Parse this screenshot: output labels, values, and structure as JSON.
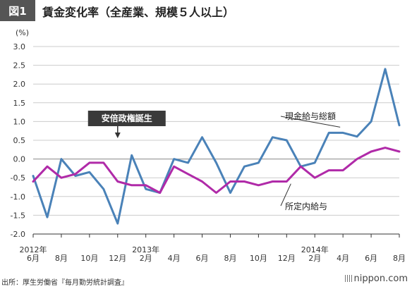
{
  "figure": {
    "badge": "図1",
    "title": "賃金変化率（全産業、規模５人以上）"
  },
  "footer": {
    "source": "出所：厚生労働省『毎月勤労統計調査』",
    "brand": "nippon.com"
  },
  "colors": {
    "total_wages": "#4a82b8",
    "scheduled_wages": "#b02aa8",
    "grid": "#cccccc",
    "axis": "#333333",
    "callout_bg": "#3a3a3a"
  },
  "chart_data": {
    "type": "line",
    "unit": "(%)",
    "ylim": [
      -2.0,
      3.0
    ],
    "yticks": [
      "3.0",
      "2.5",
      "2.0",
      "1.5",
      "1.0",
      "0.5",
      "0.0",
      "-0.5",
      "-1.0",
      "-1.5",
      "-2.0"
    ],
    "grid": true,
    "x": [
      "2012-06",
      "2012-07",
      "2012-08",
      "2012-09",
      "2012-10",
      "2012-11",
      "2012-12",
      "2013-01",
      "2013-02",
      "2013-03",
      "2013-04",
      "2013-05",
      "2013-06",
      "2013-07",
      "2013-08",
      "2013-09",
      "2013-10",
      "2013-11",
      "2013-12",
      "2014-01",
      "2014-02",
      "2014-03",
      "2014-04",
      "2014-05",
      "2014-06",
      "2014-07",
      "2014-08"
    ],
    "xtick_labels": [
      {
        "x": "2012-06",
        "lines": [
          "2012年",
          "6月"
        ]
      },
      {
        "x": "2012-08",
        "lines": [
          "",
          "8月"
        ]
      },
      {
        "x": "2012-10",
        "lines": [
          "",
          "10月"
        ]
      },
      {
        "x": "2012-12",
        "lines": [
          "",
          "12月"
        ]
      },
      {
        "x": "2013-02",
        "lines": [
          "2013年",
          "2月"
        ]
      },
      {
        "x": "2013-04",
        "lines": [
          "",
          "4月"
        ]
      },
      {
        "x": "2013-06",
        "lines": [
          "",
          "6月"
        ]
      },
      {
        "x": "2013-08",
        "lines": [
          "",
          "8月"
        ]
      },
      {
        "x": "2013-10",
        "lines": [
          "",
          "10月"
        ]
      },
      {
        "x": "2013-12",
        "lines": [
          "",
          "12月"
        ]
      },
      {
        "x": "2014-02",
        "lines": [
          "2014年",
          "2月"
        ]
      },
      {
        "x": "2014-04",
        "lines": [
          "",
          "4月"
        ]
      },
      {
        "x": "2014-06",
        "lines": [
          "",
          "6月"
        ]
      },
      {
        "x": "2014-08",
        "lines": [
          "",
          "8月"
        ]
      }
    ],
    "series": [
      {
        "name": "現金給与総額",
        "values": [
          -0.45,
          -1.55,
          0.0,
          -0.45,
          -0.35,
          -0.8,
          -1.72,
          0.1,
          -0.8,
          -0.9,
          0.0,
          -0.1,
          0.58,
          -0.1,
          -0.9,
          -0.2,
          -0.1,
          0.58,
          0.5,
          -0.2,
          -0.1,
          0.7,
          0.7,
          0.6,
          1.0,
          2.4,
          0.9
        ]
      },
      {
        "name": "所定内給与",
        "values": [
          -0.6,
          -0.2,
          -0.5,
          -0.4,
          -0.1,
          -0.1,
          -0.6,
          -0.7,
          -0.7,
          -0.9,
          -0.2,
          -0.4,
          -0.6,
          -0.9,
          -0.6,
          -0.6,
          -0.7,
          -0.6,
          -0.6,
          -0.2,
          -0.5,
          -0.3,
          -0.3,
          0.0,
          0.2,
          0.3,
          0.2
        ]
      }
    ],
    "annotations": [
      {
        "text": "安倍政権誕生",
        "x": "2012-12"
      },
      {
        "text": "現金給与総額",
        "series": "現金給与総額"
      },
      {
        "text": "所定内給与",
        "series": "所定内給与"
      }
    ]
  }
}
